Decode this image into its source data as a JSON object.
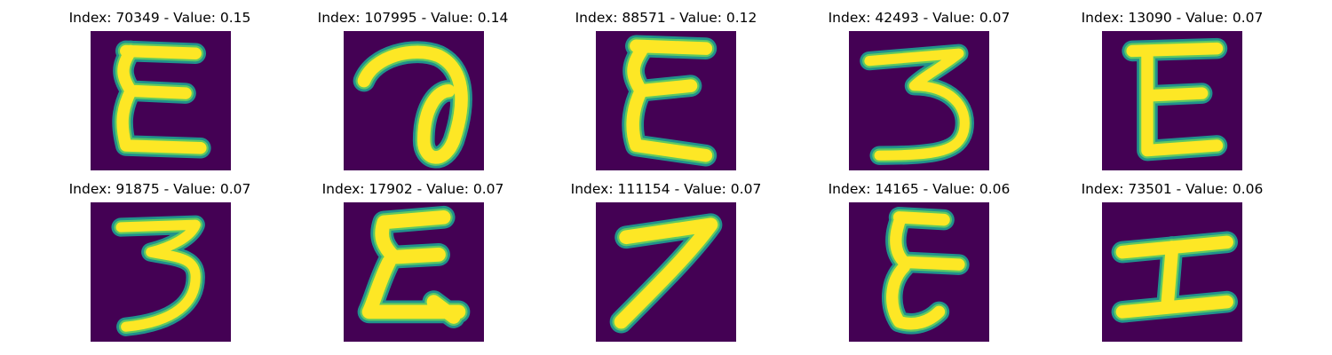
{
  "colors": {
    "background": "#440154",
    "stroke_outer": "#21918c",
    "stroke_mid": "#5ec962",
    "stroke_core": "#fde725"
  },
  "panels": [
    {
      "title": "Index: 70349 - Value: 0.15",
      "glyph": "E-curly-left"
    },
    {
      "title": "Index: 107995 - Value: 0.14",
      "glyph": "a-loop"
    },
    {
      "title": "Index: 88571 - Value: 0.12",
      "glyph": "E-curly-left"
    },
    {
      "title": "Index: 42493 - Value: 0.07",
      "glyph": "three-flat"
    },
    {
      "title": "Index: 13090 - Value: 0.07",
      "glyph": "E-block"
    },
    {
      "title": "Index: 91875 - Value: 0.07",
      "glyph": "three-curvy"
    },
    {
      "title": "Index: 17902 - Value: 0.07",
      "glyph": "E-zigzag"
    },
    {
      "title": "Index: 111154 - Value: 0.07",
      "glyph": "seven-slant"
    },
    {
      "title": "Index: 14165 - Value: 0.06",
      "glyph": "E-curly-right"
    },
    {
      "title": "Index: 73501 - Value: 0.06",
      "glyph": "I-serif"
    }
  ]
}
